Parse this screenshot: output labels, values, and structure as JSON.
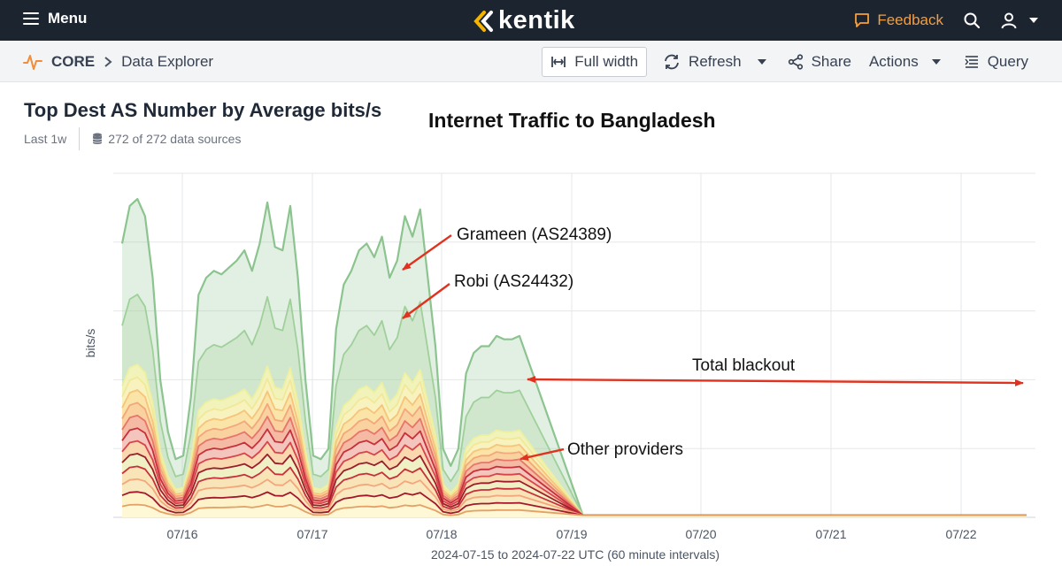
{
  "app": {
    "menu_label": "Menu",
    "logo_text": "kentik",
    "feedback_label": "Feedback",
    "brand_accent": "#f59e3a"
  },
  "breadcrumb": {
    "root": "CORE",
    "page": "Data Explorer"
  },
  "toolbar": {
    "full_width": "Full width",
    "refresh": "Refresh",
    "share": "Share",
    "actions": "Actions",
    "query": "Query"
  },
  "panel": {
    "title": "Top Dest AS Number by Average bits/s",
    "time_range": "Last 1w",
    "sources": "272 of 272 data sources"
  },
  "icons": [
    "hamburger-icon",
    "kentik-logo-icon",
    "feedback-icon",
    "search-icon",
    "user-icon",
    "pulse-icon",
    "chevron-right-icon",
    "full-width-icon",
    "refresh-icon",
    "share-icon",
    "list-icon",
    "database-icon"
  ],
  "chart_data": {
    "type": "area",
    "title": "Internet Traffic to Bangladesh",
    "ylabel": "bits/s",
    "xlabel": "2024-07-15 to 2024-07-22 UTC (60 minute intervals)",
    "x_ticks": [
      "07/16",
      "07/17",
      "07/18",
      "07/19",
      "07/20",
      "07/21",
      "07/22"
    ],
    "y_gridlines": 5,
    "stacked": true,
    "annotations": [
      {
        "text": "Grameen (AS24389)"
      },
      {
        "text": "Robi (AS24432)"
      },
      {
        "text": "Total blackout"
      },
      {
        "text": "Other providers"
      }
    ],
    "total_profile_relative": [
      0.8,
      0.91,
      0.93,
      0.88,
      0.7,
      0.4,
      0.25,
      0.17,
      0.18,
      0.35,
      0.65,
      0.7,
      0.72,
      0.71,
      0.73,
      0.75,
      0.78,
      0.72,
      0.8,
      0.92,
      0.79,
      0.78,
      0.91,
      0.7,
      0.4,
      0.18,
      0.17,
      0.2,
      0.55,
      0.68,
      0.72,
      0.78,
      0.8,
      0.76,
      0.82,
      0.7,
      0.75,
      0.88,
      0.82,
      0.9,
      0.7,
      0.5,
      0.2,
      0.15,
      0.2,
      0.42,
      0.48,
      0.5,
      0.5,
      0.53,
      0.52,
      0.52,
      0.53,
      0.0,
      0.0,
      0.0,
      0.0,
      0.0,
      0.0,
      0.0,
      0.0
    ],
    "colors": {
      "grameen": "#8cc48f",
      "robi": "#a6d49f",
      "yellow": "#f4f4b8",
      "orange": "#f6c47b",
      "red": "#c7303a",
      "annotation_arrow": "#e0321f"
    }
  }
}
